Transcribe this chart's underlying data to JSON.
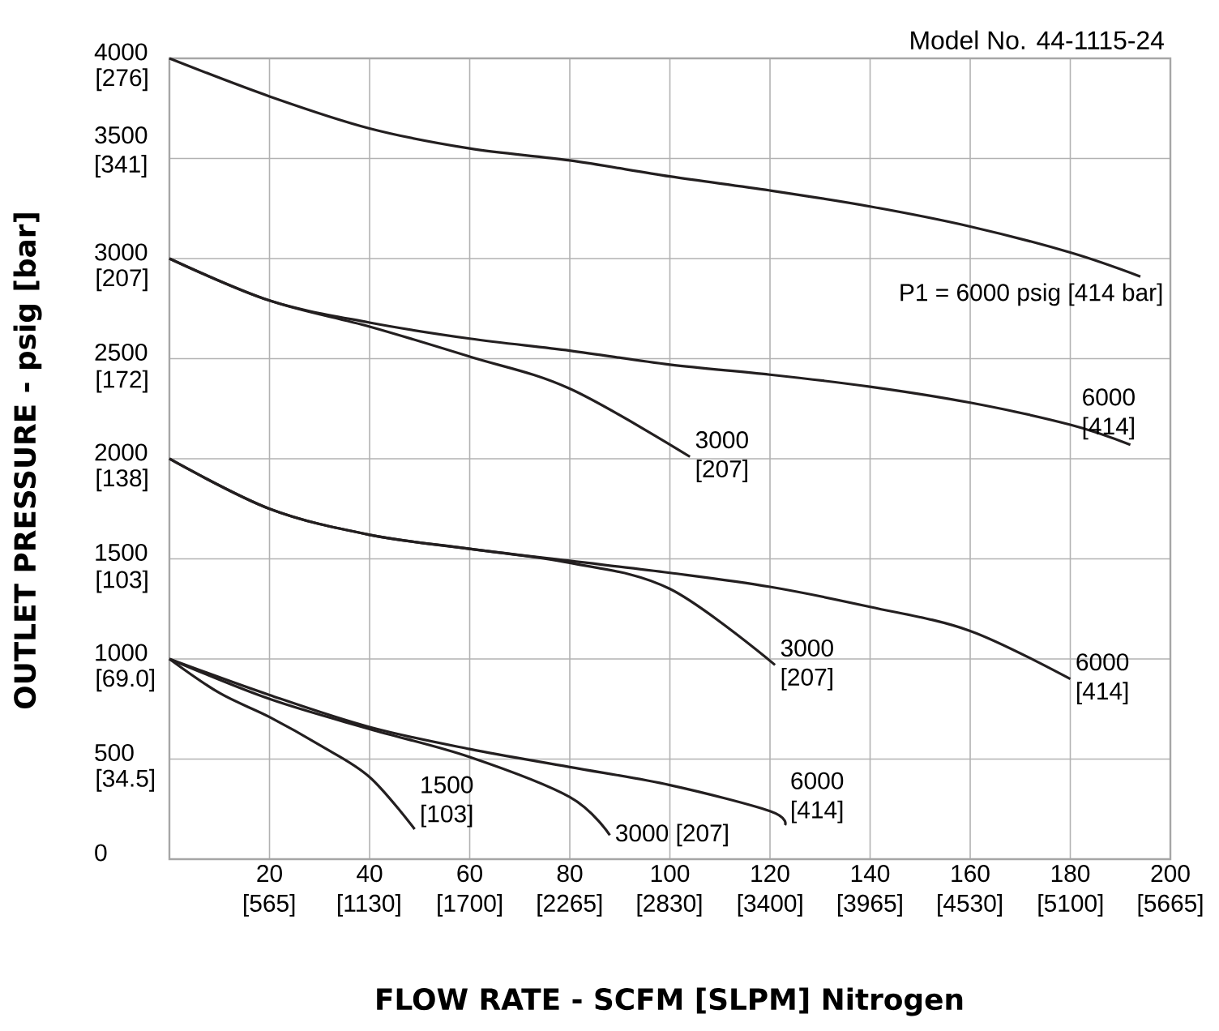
{
  "chart_data": {
    "type": "line",
    "title": "Model No. 44-1115-24",
    "xlabel": "FLOW RATE - SCFM [SLPM] Nitrogen",
    "ylabel": "OUTLET PRESSURE - psig [bar]",
    "xlim": [
      0,
      200
    ],
    "ylim": [
      0,
      4000
    ],
    "xticks": [
      20,
      40,
      60,
      80,
      100,
      120,
      140,
      160,
      180,
      200
    ],
    "yticks": [
      0,
      500,
      1000,
      1500,
      2000,
      2500,
      3000,
      {
        "value": 3500,
        "label": "3500 [341]"
      },
      4000
    ],
    "x2lim": [
      0,
      5665
    ],
    "x2ticks": [
      {
        "value": 565,
        "label": "[565]"
      },
      {
        "value": 1130,
        "label": "[1130]"
      },
      {
        "value": 1700,
        "label": "[1700]"
      },
      {
        "value": 2265,
        "label": "[2265]"
      },
      {
        "value": 2830,
        "label": "[2830]"
      },
      {
        "value": 3400,
        "label": "[3400]"
      },
      {
        "value": 3965,
        "label": "[3965]"
      },
      {
        "value": 4530,
        "label": "[4530]"
      },
      {
        "value": 5100,
        "label": "[5100]"
      },
      {
        "value": 5665,
        "label": "[5665]"
      }
    ],
    "y2lim": [
      0,
      276
    ],
    "y2ticks": [
      {
        "value": 34.5,
        "label": "[34.5]"
      },
      {
        "value": 69.0,
        "label": "[69.0]"
      },
      {
        "value": 103,
        "label": "[103]"
      },
      {
        "value": 138,
        "label": "[138]"
      },
      {
        "value": 172,
        "label": "[172]"
      },
      {
        "value": 207,
        "label": "[207]"
      },
      {
        "value": 276,
        "label": "[276]"
      }
    ],
    "grid": true,
    "marker": "none",
    "line_style": "solid",
    "series": [
      {
        "color": "#231f20",
        "x": [
          0,
          20,
          40,
          60,
          80,
          100,
          120,
          140,
          160,
          180,
          194
        ],
        "values": [
          4000,
          3810,
          3650,
          3550,
          3490,
          3410,
          3340,
          3260,
          3160,
          3030,
          2910
        ]
      },
      {
        "color": "#231f20",
        "x": [
          0,
          20,
          40,
          60,
          80,
          100,
          120,
          140,
          160,
          180,
          192
        ],
        "values": [
          3000,
          2790,
          2680,
          2600,
          2540,
          2470,
          2420,
          2360,
          2280,
          2170,
          2070
        ]
      },
      {
        "color": "#231f20",
        "x": [
          0,
          20,
          40,
          60,
          80,
          104
        ],
        "values": [
          3000,
          2790,
          2660,
          2510,
          2350,
          2010
        ]
      },
      {
        "color": "#231f20",
        "x": [
          0,
          20,
          40,
          60,
          80,
          100,
          120,
          140,
          160,
          180
        ],
        "values": [
          2000,
          1750,
          1620,
          1550,
          1490,
          1430,
          1360,
          1260,
          1140,
          900
        ]
      },
      {
        "color": "#231f20",
        "x": [
          0,
          20,
          40,
          60,
          80,
          100,
          121
        ],
        "values": [
          2000,
          1750,
          1620,
          1550,
          1480,
          1350,
          970
        ]
      },
      {
        "color": "#231f20",
        "x": [
          0,
          20,
          40,
          60,
          80,
          100,
          120,
          123
        ],
        "values": [
          1000,
          820,
          660,
          550,
          460,
          370,
          240,
          170
        ]
      },
      {
        "color": "#231f20",
        "x": [
          0,
          20,
          40,
          60,
          80,
          88
        ],
        "values": [
          1000,
          800,
          650,
          510,
          310,
          120
        ]
      },
      {
        "color": "#231f20",
        "x": [
          0,
          10,
          20,
          30,
          40,
          49
        ],
        "values": [
          1000,
          830,
          710,
          570,
          410,
          150
        ]
      }
    ],
    "annotations": [
      "P1 = 6000 psig [414 bar]",
      {
        "text": "6000 [414]",
        "x": 192,
        "y": 2070
      },
      {
        "text": "3000 [207]",
        "x": 104,
        "y": 2010
      },
      {
        "text": "3000 [207]",
        "x": 121,
        "y": 970
      },
      {
        "text": "6000 [414]",
        "x": 180,
        "y": 900
      },
      {
        "text": "1500 [103]",
        "x": 49,
        "y": 150
      },
      {
        "text": "3000 [207]",
        "x": 88,
        "y": 120
      },
      {
        "text": "6000 [414]",
        "x": 123,
        "y": 170
      }
    ]
  }
}
